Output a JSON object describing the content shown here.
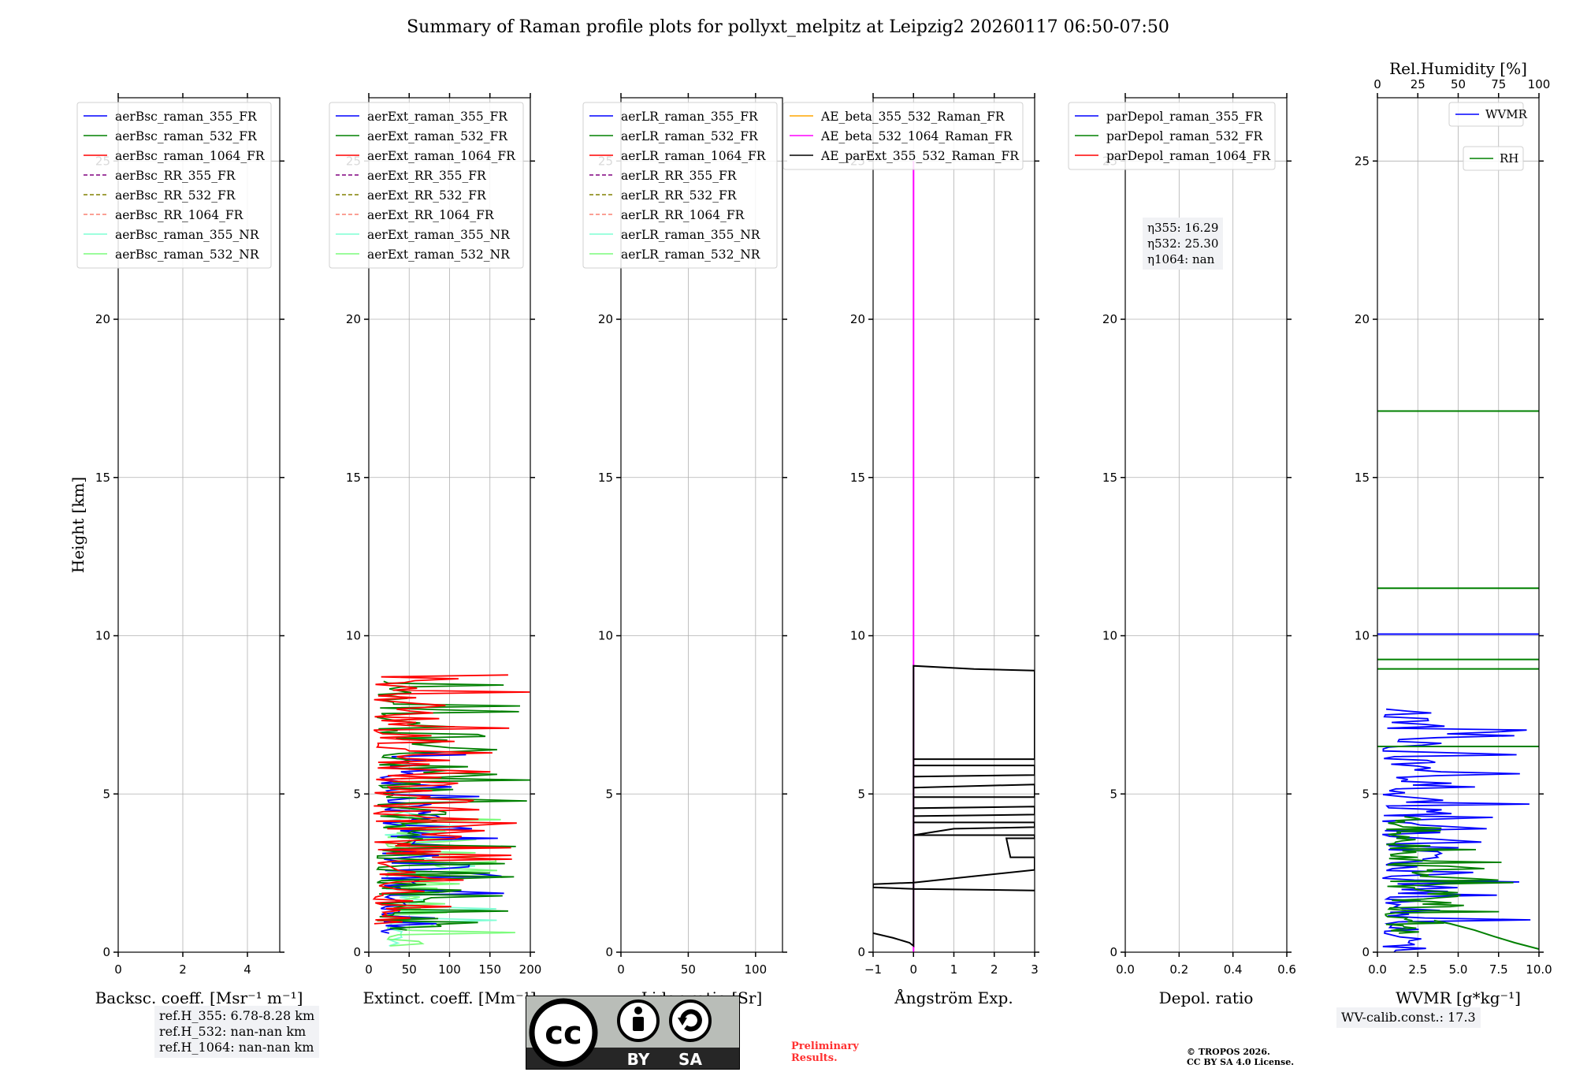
{
  "title": "Summary of Raman profile plots for pollyxt_melpitz at Leipzig2 20260117 06:50-07:50",
  "shared_ylabel": "Height [km]",
  "notes": {
    "ref_h_355": "ref.H_355: 6.78-8.28 km",
    "ref_h_532": "ref.H_532: nan-nan km",
    "ref_h_1064": "ref.H_1064: nan-nan km",
    "wv_calib": "WV-calib.const.: 17.3",
    "preliminary_1": "Preliminary",
    "preliminary_2": "Results.",
    "copyright_1": "© TROPOS 2026.",
    "copyright_2": "CC BY SA 4.0 License.",
    "eta_355": "η355: 16.29",
    "eta_532": "η532: 25.30",
    "eta_1064": "η1064: nan",
    "cc_badge_by": "BY",
    "cc_badge_sa": "SA",
    "cc_badge_cc": "cc"
  },
  "colors": {
    "blue": "#0000ff",
    "green": "#008000",
    "red": "#ff0000",
    "purple": "#800080",
    "olive": "#808000",
    "salmon": "#fa8072",
    "cyan": "#7fffd4",
    "lightgreen": "#7cfc7c",
    "orange": "#ffa500",
    "magenta": "#ff00ff",
    "black": "#000000"
  },
  "chart_data": [
    {
      "id": "backscatter",
      "type": "line",
      "xlabel": "Backsc. coeff. [Msr⁻¹ m⁻¹]",
      "ylabel": "Height [km]",
      "xlim": [
        0,
        5
      ],
      "ylim": [
        0,
        27
      ],
      "xticks": [
        0,
        2,
        4
      ],
      "yticks": [
        0,
        5,
        10,
        15,
        20,
        25
      ],
      "legend": [
        {
          "label": "aerBsc_raman_355_FR",
          "color": "blue",
          "style": "solid"
        },
        {
          "label": "aerBsc_raman_532_FR",
          "color": "green",
          "style": "solid"
        },
        {
          "label": "aerBsc_raman_1064_FR",
          "color": "red",
          "style": "solid"
        },
        {
          "label": "aerBsc_RR_355_FR",
          "color": "purple",
          "style": "dashed"
        },
        {
          "label": "aerBsc_RR_532_FR",
          "color": "olive",
          "style": "dashed"
        },
        {
          "label": "aerBsc_RR_1064_FR",
          "color": "salmon",
          "style": "dashed"
        },
        {
          "label": "aerBsc_raman_355_NR",
          "color": "cyan",
          "style": "solid"
        },
        {
          "label": "aerBsc_raman_532_NR",
          "color": "lightgreen",
          "style": "solid"
        }
      ],
      "series": []
    },
    {
      "id": "extinction",
      "type": "line",
      "xlabel": "Extinct. coeff. [Mm⁻¹]",
      "xlim": [
        0,
        200
      ],
      "ylim": [
        0,
        27
      ],
      "xticks": [
        0,
        50,
        100,
        150,
        200
      ],
      "yticks": [
        0,
        5,
        10,
        15,
        20,
        25
      ],
      "legend": [
        {
          "label": "aerExt_raman_355_FR",
          "color": "blue",
          "style": "solid"
        },
        {
          "label": "aerExt_raman_532_FR",
          "color": "green",
          "style": "solid"
        },
        {
          "label": "aerExt_raman_1064_FR",
          "color": "red",
          "style": "solid"
        },
        {
          "label": "aerExt_RR_355_FR",
          "color": "purple",
          "style": "dashed"
        },
        {
          "label": "aerExt_RR_532_FR",
          "color": "olive",
          "style": "dashed"
        },
        {
          "label": "aerExt_RR_1064_FR",
          "color": "salmon",
          "style": "dashed"
        },
        {
          "label": "aerExt_raman_355_NR",
          "color": "cyan",
          "style": "solid"
        },
        {
          "label": "aerExt_raman_532_NR",
          "color": "lightgreen",
          "style": "solid"
        }
      ],
      "series": [
        {
          "name": "aerExt_raman_355_NR",
          "color": "cyan",
          "kind": "spiky",
          "ymin": 0.2,
          "ymax": 4.7,
          "xbase": 20,
          "xspread": 190,
          "seed": 11,
          "step": 0.09
        },
        {
          "name": "aerExt_raman_532_NR",
          "color": "lightgreen",
          "kind": "spiky",
          "ymin": 0.2,
          "ymax": 4.5,
          "xbase": 20,
          "xspread": 180,
          "seed": 23,
          "step": 0.07
        },
        {
          "name": "aerExt_raman_355_FR",
          "color": "blue",
          "kind": "spiky",
          "ymin": 0.6,
          "ymax": 6.3,
          "xbase": 15,
          "xspread": 160,
          "seed": 37,
          "step": 0.06
        },
        {
          "name": "aerExt_raman_532_FR",
          "color": "green",
          "kind": "spiky",
          "ymin": 0.7,
          "ymax": 8.6,
          "xbase": 10,
          "xspread": 200,
          "seed": 41,
          "step": 0.06
        },
        {
          "name": "aerExt_raman_1064_FR",
          "color": "red",
          "kind": "spiky",
          "ymin": 0.9,
          "ymax": 8.8,
          "xbase": 5,
          "xspread": 200,
          "seed": 53,
          "step": 0.06
        }
      ]
    },
    {
      "id": "lidar_ratio",
      "type": "line",
      "xlabel": "Lidar ratio [Sr]",
      "xlim": [
        0,
        120
      ],
      "ylim": [
        0,
        27
      ],
      "xticks": [
        0,
        50,
        100
      ],
      "yticks": [
        0,
        5,
        10,
        15,
        20,
        25
      ],
      "legend": [
        {
          "label": "aerLR_raman_355_FR",
          "color": "blue",
          "style": "solid"
        },
        {
          "label": "aerLR_raman_532_FR",
          "color": "green",
          "style": "solid"
        },
        {
          "label": "aerLR_raman_1064_FR",
          "color": "red",
          "style": "solid"
        },
        {
          "label": "aerLR_RR_355_FR",
          "color": "purple",
          "style": "dashed"
        },
        {
          "label": "aerLR_RR_532_FR",
          "color": "olive",
          "style": "dashed"
        },
        {
          "label": "aerLR_RR_1064_FR",
          "color": "salmon",
          "style": "dashed"
        },
        {
          "label": "aerLR_raman_355_NR",
          "color": "cyan",
          "style": "solid"
        },
        {
          "label": "aerLR_raman_532_NR",
          "color": "lightgreen",
          "style": "solid"
        }
      ],
      "series": []
    },
    {
      "id": "angstrom",
      "type": "line",
      "xlabel": "Ångström Exp.",
      "xlim": [
        -1,
        3
      ],
      "ylim": [
        0,
        27
      ],
      "xticks": [
        -1,
        0,
        1,
        2,
        3
      ],
      "yticks": [
        0,
        5,
        10,
        15,
        20,
        25
      ],
      "legend": [
        {
          "label": "AE_beta_355_532_Raman_FR",
          "color": "orange",
          "style": "solid"
        },
        {
          "label": "AE_beta_532_1064_Raman_FR",
          "color": "magenta",
          "style": "solid"
        },
        {
          "label": "AE_parExt_355_532_Raman_FR",
          "color": "black",
          "style": "solid"
        }
      ],
      "series": [
        {
          "name": "AE_beta_532_1064_Raman_FR",
          "color": "magenta",
          "kind": "points",
          "points": [
            [
              0,
              0
            ],
            [
              0,
              25
            ]
          ]
        },
        {
          "name": "AE_parExt_355_532_Raman_FR",
          "color": "black",
          "kind": "points",
          "points": [
            [
              -1,
              0.6
            ],
            [
              -0.5,
              0.45
            ],
            [
              -0.1,
              0.3
            ],
            [
              0,
              0.2
            ],
            [
              0,
              9.05
            ],
            [
              1.5,
              8.95
            ],
            [
              3,
              8.9
            ],
            [
              3,
              6.1
            ],
            [
              0,
              6.1
            ],
            [
              0,
              5.9
            ],
            [
              3,
              5.9
            ],
            [
              3,
              5.6
            ],
            [
              0,
              5.55
            ],
            [
              0,
              5.2
            ],
            [
              3,
              5.3
            ],
            [
              3,
              4.9
            ],
            [
              0,
              4.9
            ],
            [
              0,
              4.55
            ],
            [
              3,
              4.6
            ],
            [
              3,
              4.35
            ],
            [
              0,
              4.3
            ],
            [
              0,
              4.1
            ],
            [
              3,
              4.1
            ],
            [
              3,
              3.95
            ],
            [
              1,
              3.9
            ],
            [
              0,
              3.7
            ],
            [
              3,
              3.7
            ],
            [
              3,
              3.6
            ],
            [
              2.3,
              3.6
            ],
            [
              2.4,
              3.0
            ],
            [
              3,
              3.0
            ],
            [
              3,
              2.6
            ],
            [
              1.5,
              2.4
            ],
            [
              0,
              2.2
            ],
            [
              -1,
              2.15
            ],
            [
              -1,
              2.05
            ],
            [
              0,
              2.0
            ],
            [
              3,
              1.95
            ]
          ]
        }
      ]
    },
    {
      "id": "depol",
      "type": "line",
      "xlabel": "Depol. ratio",
      "xlim": [
        0,
        0.6
      ],
      "ylim": [
        0,
        27
      ],
      "xticks": [
        0.0,
        0.2,
        0.4,
        0.6
      ],
      "yticks": [
        0,
        5,
        10,
        15,
        20,
        25
      ],
      "legend": [
        {
          "label": "parDepol_raman_355_FR",
          "color": "blue",
          "style": "solid"
        },
        {
          "label": "parDepol_raman_532_FR",
          "color": "green",
          "style": "solid"
        },
        {
          "label": "parDepol_raman_1064_FR",
          "color": "red",
          "style": "solid"
        }
      ],
      "series": []
    },
    {
      "id": "wvmr",
      "type": "line",
      "xlabel": "WVMR [g*kg⁻¹]",
      "xlabel_top": "Rel.Humidity [%]",
      "xlim": [
        0,
        10
      ],
      "xlim_top": [
        0,
        100
      ],
      "ylim": [
        0,
        27
      ],
      "xticks": [
        0.0,
        2.5,
        5.0,
        7.5,
        10.0
      ],
      "xticks_top": [
        0,
        25,
        50,
        75,
        100
      ],
      "yticks": [
        0,
        5,
        10,
        15,
        20,
        25
      ],
      "legend": [
        {
          "label": "WVMR",
          "color": "blue",
          "style": "solid"
        },
        {
          "label": "RH",
          "color": "green",
          "style": "solid"
        }
      ],
      "series": [
        {
          "name": "WVMR",
          "color": "blue",
          "kind": "spiky",
          "ymin": 0.0,
          "ymax": 7.7,
          "xbase": 0.3,
          "xspread": 9.7,
          "seed": 71,
          "step": 0.06
        },
        {
          "name": "RH",
          "color": "green",
          "kind": "spiky",
          "ymin": 0.6,
          "ymax": 4.3,
          "xbase": 0.5,
          "xspread": 9.5,
          "seed": 83,
          "step": 0.04
        },
        {
          "name": "RH_lines",
          "color": "green",
          "kind": "hlines",
          "levels": [
            17.1,
            11.5,
            9.25,
            8.95,
            6.5
          ]
        },
        {
          "name": "WVMR_lines",
          "color": "blue",
          "kind": "hlines",
          "levels": [
            10.05
          ]
        },
        {
          "name": "RH_surface",
          "color": "green",
          "kind": "points",
          "points": [
            [
              10,
              0.1
            ],
            [
              8.5,
              0.3
            ],
            [
              7.2,
              0.5
            ],
            [
              6,
              0.7
            ],
            [
              4.5,
              0.9
            ],
            [
              3.5,
              1.0
            ]
          ]
        }
      ]
    }
  ]
}
